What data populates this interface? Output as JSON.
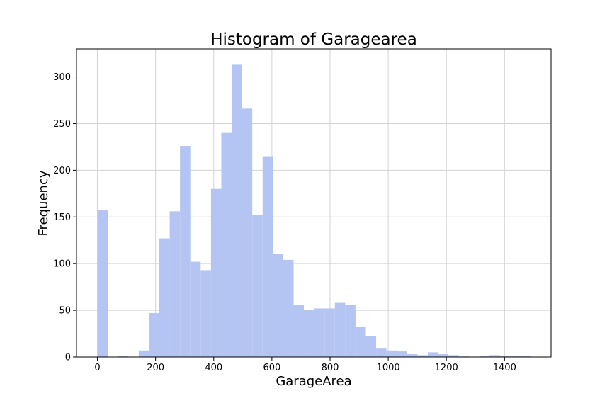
{
  "chart_data": {
    "type": "bar",
    "title": "Histogram of Garagearea",
    "xlabel": "GarageArea",
    "ylabel": "Frequency",
    "xlim": [
      -72,
      1560
    ],
    "ylim": [
      0,
      330
    ],
    "x_ticks": [
      0,
      200,
      400,
      600,
      800,
      1000,
      1200,
      1400
    ],
    "y_ticks": [
      0,
      50,
      100,
      150,
      200,
      250,
      300
    ],
    "grid": true,
    "bar_color": "#b4c4f3",
    "bin_width": 35.5,
    "bins": [
      {
        "x": 0,
        "count": 157
      },
      {
        "x": 71,
        "count": 1
      },
      {
        "x": 142,
        "count": 7
      },
      {
        "x": 177.5,
        "count": 47
      },
      {
        "x": 213,
        "count": 127
      },
      {
        "x": 248.5,
        "count": 156
      },
      {
        "x": 284,
        "count": 226
      },
      {
        "x": 319.5,
        "count": 102
      },
      {
        "x": 355,
        "count": 93
      },
      {
        "x": 390.5,
        "count": 180
      },
      {
        "x": 426,
        "count": 240
      },
      {
        "x": 461.5,
        "count": 313
      },
      {
        "x": 497,
        "count": 266
      },
      {
        "x": 532.5,
        "count": 152
      },
      {
        "x": 568,
        "count": 215
      },
      {
        "x": 603.5,
        "count": 110
      },
      {
        "x": 639,
        "count": 104
      },
      {
        "x": 674.5,
        "count": 56
      },
      {
        "x": 710,
        "count": 50
      },
      {
        "x": 745.5,
        "count": 52
      },
      {
        "x": 781,
        "count": 52
      },
      {
        "x": 816.5,
        "count": 58
      },
      {
        "x": 852,
        "count": 56
      },
      {
        "x": 887.5,
        "count": 32
      },
      {
        "x": 923,
        "count": 22
      },
      {
        "x": 958.5,
        "count": 9
      },
      {
        "x": 994,
        "count": 7
      },
      {
        "x": 1029.5,
        "count": 6
      },
      {
        "x": 1065,
        "count": 3
      },
      {
        "x": 1100.5,
        "count": 2
      },
      {
        "x": 1136,
        "count": 5
      },
      {
        "x": 1171.5,
        "count": 3
      },
      {
        "x": 1207,
        "count": 2
      },
      {
        "x": 1242.5,
        "count": 0.6
      },
      {
        "x": 1313.5,
        "count": 1
      },
      {
        "x": 1349,
        "count": 2
      },
      {
        "x": 1384.5,
        "count": 1
      },
      {
        "x": 1420,
        "count": 1
      },
      {
        "x": 1455.5,
        "count": 1
      }
    ]
  }
}
